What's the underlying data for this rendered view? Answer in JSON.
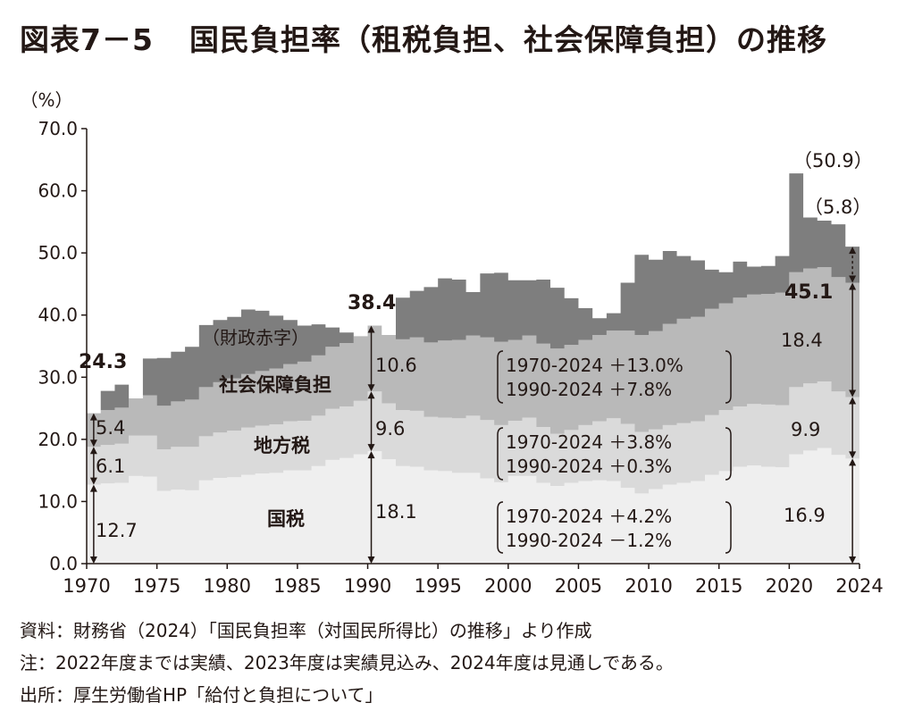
{
  "title": {
    "number": "図表7－5",
    "text": "国民負担率（租税負担、社会保障負担）の推移"
  },
  "notes": [
    "資料：財務省（2024）「国民負担率（対国民所得比）の推移」より作成",
    "注：2022年度までは実績、2023年度は実績見込み、2024年度は見通しである。",
    "出所：厚生労働省HP「給付と負担について」"
  ],
  "colors": {
    "national_tax": "#efefef",
    "local_tax": "#dadada",
    "social_security": "#b9b9b9",
    "deficit": "#7e7e7e",
    "axis": "#231815"
  },
  "chart_data": {
    "type": "area",
    "ylabel": "（%）",
    "ylim": [
      0,
      70
    ],
    "yticks": [
      "0.0",
      "10.0",
      "20.0",
      "30.0",
      "40.0",
      "50.0",
      "60.0",
      "70.0"
    ],
    "xticks": [
      "1970",
      "1975",
      "1980",
      "1985",
      "1990",
      "1995",
      "2000",
      "2005",
      "2010",
      "2015",
      "2020",
      "2024"
    ],
    "x": [
      1970,
      1971,
      1972,
      1973,
      1974,
      1975,
      1976,
      1977,
      1978,
      1979,
      1980,
      1981,
      1982,
      1983,
      1984,
      1985,
      1986,
      1987,
      1988,
      1989,
      1990,
      1991,
      1992,
      1993,
      1994,
      1995,
      1996,
      1997,
      1998,
      1999,
      2000,
      2001,
      2002,
      2003,
      2004,
      2005,
      2006,
      2007,
      2008,
      2009,
      2010,
      2011,
      2012,
      2013,
      2014,
      2015,
      2016,
      2017,
      2018,
      2019,
      2020,
      2021,
      2022,
      2023,
      2024
    ],
    "series": [
      {
        "name": "国税",
        "values": [
          12.7,
          12.9,
          13.0,
          14.1,
          14.0,
          11.7,
          11.9,
          11.8,
          13.4,
          13.8,
          13.9,
          14.3,
          14.5,
          14.6,
          15.0,
          15.0,
          15.7,
          16.7,
          17.0,
          17.6,
          18.1,
          16.8,
          15.7,
          15.6,
          15.0,
          14.9,
          14.6,
          14.6,
          13.7,
          13.1,
          14.1,
          14.1,
          13.0,
          12.5,
          13.0,
          13.3,
          13.4,
          13.3,
          12.2,
          11.3,
          12.0,
          12.7,
          13.0,
          13.3,
          14.3,
          14.9,
          15.6,
          15.8,
          15.6,
          15.5,
          17.6,
          18.2,
          18.6,
          17.5,
          16.9
        ]
      },
      {
        "name": "地方税",
        "values": [
          6.1,
          6.2,
          6.3,
          6.5,
          6.6,
          6.7,
          6.9,
          7.0,
          7.1,
          7.3,
          7.5,
          7.6,
          7.7,
          7.8,
          7.9,
          8.0,
          8.1,
          8.2,
          8.3,
          8.6,
          9.6,
          9.0,
          9.0,
          9.0,
          8.6,
          8.6,
          8.8,
          9.2,
          9.4,
          9.2,
          8.9,
          9.4,
          9.0,
          8.4,
          8.5,
          9.0,
          9.5,
          10.1,
          10.3,
          9.9,
          9.6,
          9.6,
          9.6,
          9.6,
          9.6,
          9.8,
          9.7,
          9.9,
          10.0,
          10.0,
          10.8,
          10.8,
          10.7,
          10.2,
          9.9
        ]
      },
      {
        "name": "社会保障負担",
        "values": [
          5.4,
          5.6,
          5.8,
          6.0,
          6.5,
          7.0,
          7.3,
          7.6,
          7.9,
          8.1,
          8.4,
          8.6,
          8.8,
          9.0,
          9.2,
          9.5,
          9.7,
          10.0,
          10.2,
          10.4,
          10.6,
          11.0,
          11.4,
          11.8,
          12.0,
          12.4,
          12.6,
          12.9,
          13.3,
          13.4,
          13.0,
          13.2,
          13.4,
          13.7,
          13.7,
          13.7,
          13.9,
          14.1,
          15.0,
          15.6,
          15.8,
          16.3,
          16.8,
          16.8,
          17.1,
          17.2,
          17.5,
          17.6,
          17.8,
          18.1,
          18.5,
          18.5,
          18.4,
          18.4,
          18.4
        ]
      },
      {
        "name": "財政赤字",
        "values": [
          0.0,
          3.1,
          3.7,
          0.0,
          5.9,
          7.7,
          8.0,
          8.5,
          10.0,
          10.0,
          9.9,
          10.4,
          9.7,
          8.5,
          7.1,
          5.8,
          5.0,
          3.1,
          1.7,
          0.0,
          0.0,
          0.0,
          6.7,
          7.5,
          8.9,
          10.0,
          9.7,
          7.0,
          10.3,
          11.1,
          9.6,
          8.9,
          10.3,
          9.8,
          7.5,
          5.1,
          2.7,
          2.8,
          7.7,
          12.9,
          11.5,
          11.7,
          10.1,
          9.1,
          6.3,
          5.0,
          5.8,
          4.5,
          4.5,
          5.9,
          15.9,
          8.2,
          7.5,
          8.5,
          5.8
        ]
      }
    ],
    "totals": [
      {
        "year": 1970,
        "label": "24.3"
      },
      {
        "year": 1990,
        "label": "38.4"
      },
      {
        "year": 2024,
        "label": "45.1"
      }
    ],
    "annotations": {
      "deficit_2020": "（50.9）",
      "deficit_2024": "（5.8）",
      "deficit_label": "（財政赤字）",
      "label_social": "社会保障負担",
      "label_local": "地方税",
      "label_national": "国税",
      "values_1970": {
        "national": "12.7",
        "local": "6.1",
        "social": "5.4"
      },
      "values_1990": {
        "national": "18.1",
        "local": "9.6",
        "social": "10.6"
      },
      "values_2024": {
        "national": "16.9",
        "local": "9.9",
        "social": "18.4"
      },
      "change_social": [
        "1970-2024 ＋13.0%",
        "1990-2024 ＋7.8%"
      ],
      "change_local": [
        "1970-2024 ＋3.8%",
        "1990-2024 ＋0.3%"
      ],
      "change_national": [
        "1970-2024 ＋4.2%",
        "1990-2024 －1.2%"
      ]
    }
  }
}
